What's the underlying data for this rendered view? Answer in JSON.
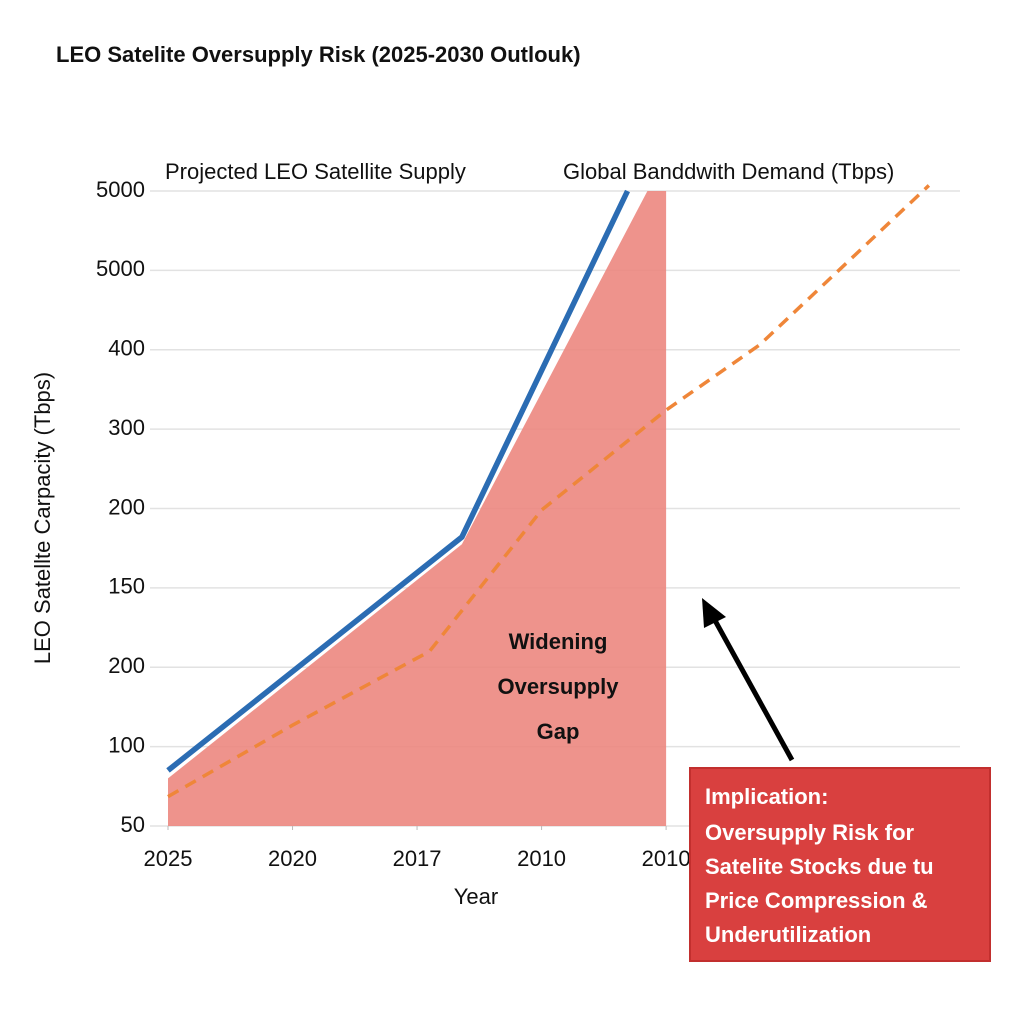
{
  "chart_data": {
    "type": "line",
    "title": "LEO Satelite Oversupply Risk (2025-2030 Outlouk)",
    "x_label": "Year",
    "y_label": "LEO Satellte Carpacity (Tbps)",
    "xlim": [
      0,
      6.36
    ],
    "xticks": [
      {
        "value": 0,
        "label": "2025"
      },
      {
        "value": 1,
        "label": "2020"
      },
      {
        "value": 2,
        "label": "2017"
      },
      {
        "value": 3,
        "label": "2010"
      },
      {
        "value": 4,
        "label": "2010"
      }
    ],
    "ylim": [
      0,
      8
    ],
    "yticks": [
      {
        "value": 0,
        "label": "50"
      },
      {
        "value": 1,
        "label": "100"
      },
      {
        "value": 2,
        "label": "200"
      },
      {
        "value": 3,
        "label": "150"
      },
      {
        "value": 4,
        "label": "200"
      },
      {
        "value": 5,
        "label": "300"
      },
      {
        "value": 6,
        "label": "400"
      },
      {
        "value": 7,
        "label": "5000"
      },
      {
        "value": 8,
        "label": "5000"
      }
    ],
    "grid": true,
    "area": {
      "color": "#ec8780",
      "x": [
        0,
        2.36,
        3.85,
        4
      ],
      "values": [
        0.6,
        3.55,
        8,
        8
      ]
    },
    "series": [
      {
        "name": "Projected LEO Satellite Supply",
        "color": "#2b6cb3",
        "style": "solid",
        "x": [
          0,
          2.36,
          3.69
        ],
        "values": [
          0.7,
          3.64,
          8
        ]
      },
      {
        "name": "Global Banddwith Demand (Tbps)",
        "color": "#ef8639",
        "style": "dashed",
        "x": [
          0,
          1,
          2.1,
          3,
          4,
          4.75,
          6.11
        ],
        "values": [
          0.37,
          1.27,
          2.2,
          3.98,
          5.24,
          6.06,
          8.07
        ]
      }
    ],
    "annotation": [
      "Widening",
      "Oversupply",
      "Gap"
    ],
    "callout": {
      "title": "Implication:",
      "lines": [
        "Oversupply Risk for",
        "Satelite Stocks due tu",
        "Price Compression &",
        "Underutilization"
      ]
    }
  }
}
